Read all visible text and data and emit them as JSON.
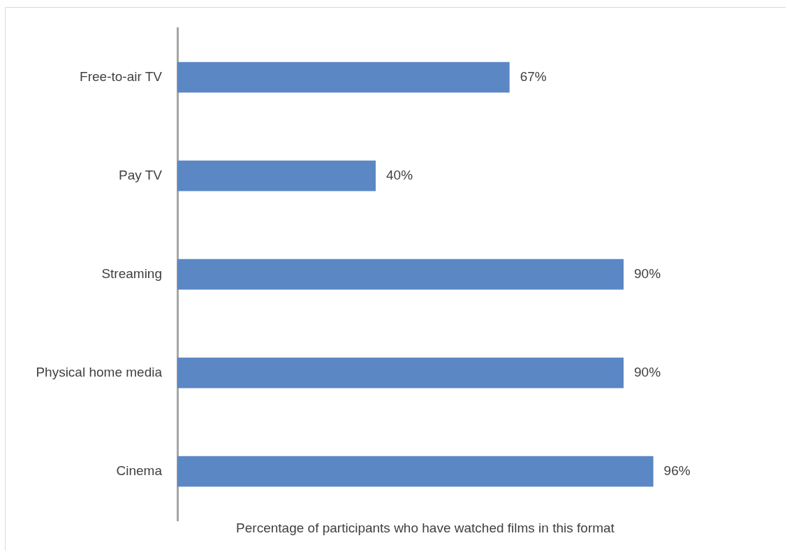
{
  "chart_data": {
    "type": "bar",
    "orientation": "horizontal",
    "xlabel": "Percentage of participants who have watched films in this format",
    "categories": [
      "Free-to-air TV",
      "Pay TV",
      "Streaming",
      "Physical home media",
      "Cinema"
    ],
    "values": [
      67,
      40,
      90,
      90,
      96
    ],
    "value_labels": [
      "67%",
      "40%",
      "90%",
      "90%",
      "96%"
    ],
    "color": "#5b87c5",
    "grid": false,
    "legend": false
  }
}
